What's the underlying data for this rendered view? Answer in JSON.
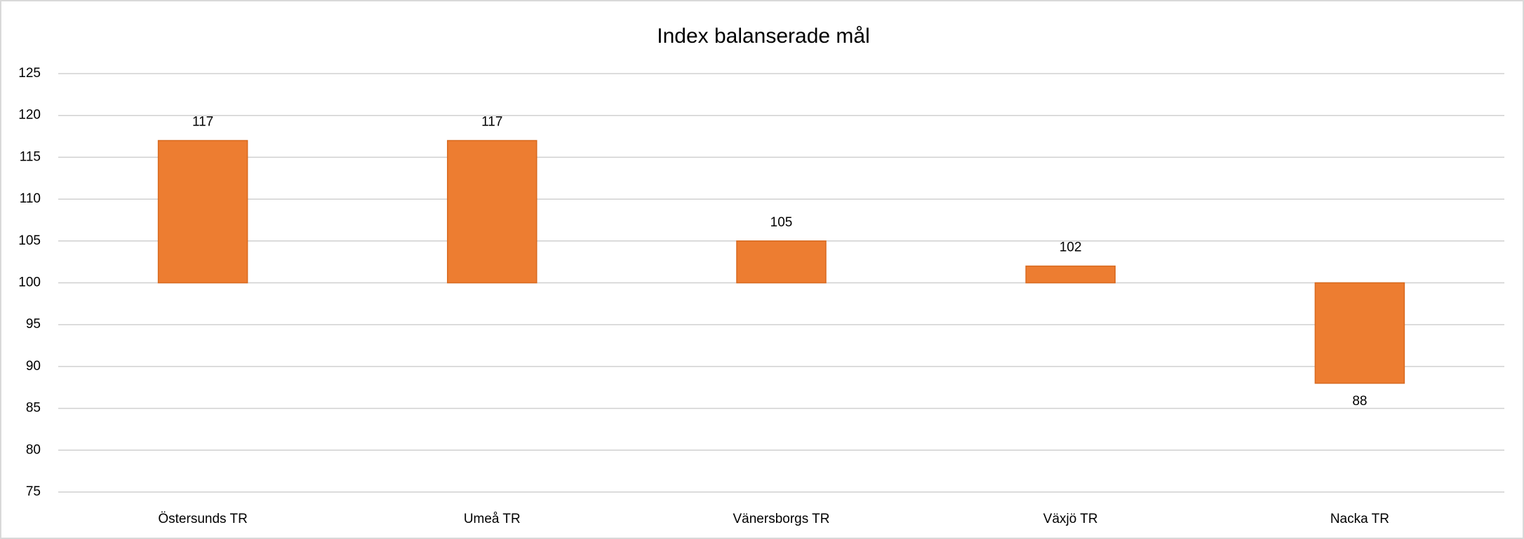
{
  "chart_data": {
    "type": "bar",
    "title": "Index balanserade mål",
    "categories": [
      "Östersunds TR",
      "Umeå TR",
      "Vänersborgs TR",
      "Växjö TR",
      "Nacka TR"
    ],
    "values": [
      117,
      117,
      105,
      102,
      88
    ],
    "color": "#ed7d31",
    "ylim": [
      75,
      125
    ],
    "yticks": [
      75,
      80,
      85,
      90,
      95,
      100,
      105,
      110,
      115,
      120,
      125
    ],
    "axis_crossing": 100,
    "grid": true
  }
}
